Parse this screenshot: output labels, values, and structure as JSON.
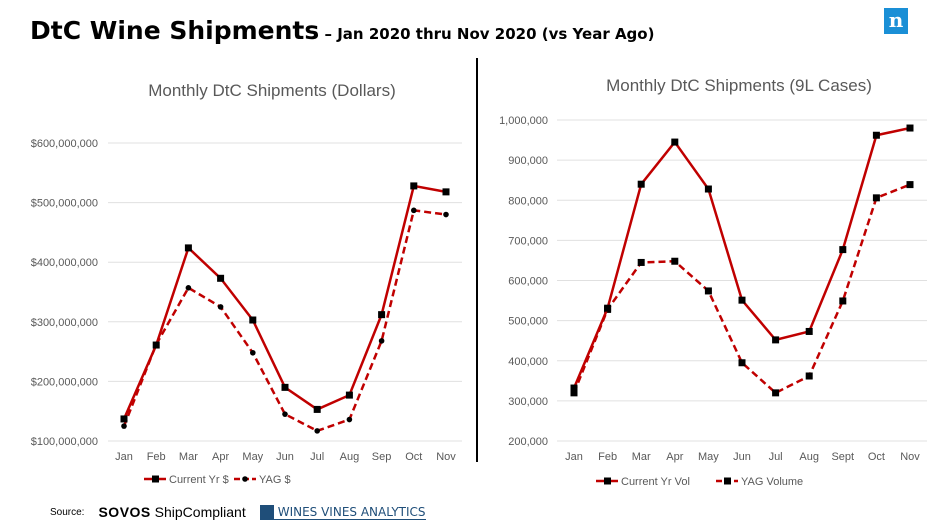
{
  "title": {
    "main": "DtC Wine Shipments",
    "sub": " – Jan 2020 thru Nov 2020 (vs Year Ago)"
  },
  "logo": "n",
  "source": {
    "label": "Source:",
    "sovos_bold": "SOVOS",
    "sovos_rest": " ShipCompliant",
    "wva": "WINES VINES ANALYTICS"
  },
  "colors": {
    "series": "#c00000",
    "marker": "#000000",
    "grid": "#e0e0e0"
  },
  "chart_data": [
    {
      "type": "line",
      "title": "Monthly DtC Shipments (Dollars)",
      "categories": [
        "Jan",
        "Feb",
        "Mar",
        "Apr",
        "May",
        "Jun",
        "Jul",
        "Aug",
        "Sep",
        "Oct",
        "Nov"
      ],
      "ylim": [
        100000000,
        600000000
      ],
      "yticks": [
        "$100,000,000",
        "$200,000,000",
        "$300,000,000",
        "$400,000,000",
        "$500,000,000",
        "$600,000,000"
      ],
      "grid": true,
      "legend_position": "bottom",
      "series": [
        {
          "name": "Current Yr $",
          "style": "solid",
          "marker": "square",
          "values": [
            137000000,
            261000000,
            424000000,
            373000000,
            303000000,
            190000000,
            153000000,
            177000000,
            312000000,
            528000000,
            518000000
          ]
        },
        {
          "name": "YAG $",
          "style": "dashed",
          "marker": "circle",
          "values": [
            125000000,
            262000000,
            357000000,
            325000000,
            248000000,
            145000000,
            117000000,
            136000000,
            268000000,
            487000000,
            480000000
          ]
        }
      ]
    },
    {
      "type": "line",
      "title": "Monthly DtC Shipments (9L Cases)",
      "categories": [
        "Jan",
        "Feb",
        "Mar",
        "Apr",
        "May",
        "Jun",
        "Jul",
        "Aug",
        "Sept",
        "Oct",
        "Nov"
      ],
      "ylim": [
        200000,
        1000000
      ],
      "yticks": [
        "200,000",
        "300,000",
        "400,000",
        "500,000",
        "600,000",
        "700,000",
        "800,000",
        "900,000",
        "1,000,000"
      ],
      "grid": true,
      "legend_position": "bottom",
      "series": [
        {
          "name": "Current Yr Vol",
          "style": "solid",
          "marker": "square",
          "values": [
            332000,
            531000,
            840000,
            945000,
            828000,
            551000,
            452000,
            473000,
            677000,
            962000,
            980000
          ]
        },
        {
          "name": "YAG Volume",
          "style": "dashed",
          "marker": "square",
          "values": [
            320000,
            528000,
            645000,
            648000,
            574000,
            395000,
            320000,
            362000,
            549000,
            806000,
            839000
          ]
        }
      ]
    }
  ]
}
